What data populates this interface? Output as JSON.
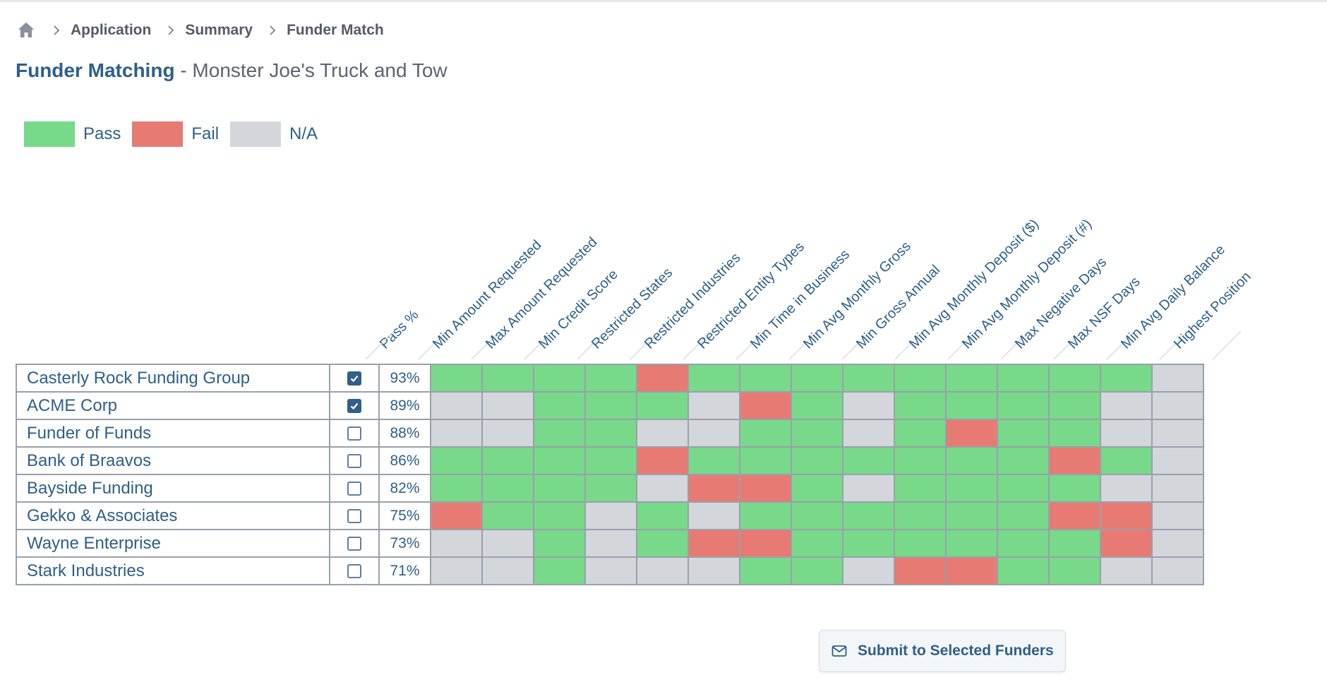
{
  "breadcrumb": {
    "home_icon": "home-icon",
    "items": [
      "Application",
      "Summary",
      "Funder Match"
    ]
  },
  "title": {
    "main": "Funder Matching",
    "rest": " - Monster Joe's Truck and Tow"
  },
  "legend": [
    {
      "label": "Pass",
      "color": "#77d989"
    },
    {
      "label": "Fail",
      "color": "#e87a74"
    },
    {
      "label": "N/A",
      "color": "#d3d6db"
    }
  ],
  "columns": [
    "Pass %",
    "Min Amount Requested",
    "Max Amount Requested",
    "Min Credit Score",
    "Restricted States",
    "Restricted Industries",
    "Restricted Entity Types",
    "Min Time in Business",
    "Min Avg Monthly Gross",
    "Min Gross Annual",
    "Min Avg Monthly Deposit ($)",
    "Min Avg Monthly Deposit (#)",
    "Max Negative Days",
    "Max NSF Days",
    "Min Avg Daily Balance",
    "Highest Position"
  ],
  "funders": [
    {
      "name": "Casterly Rock Funding Group",
      "selected": true,
      "pass_pct": "93%",
      "results": [
        "pass",
        "pass",
        "pass",
        "pass",
        "fail",
        "pass",
        "pass",
        "pass",
        "pass",
        "pass",
        "pass",
        "pass",
        "pass",
        "pass",
        "na"
      ]
    },
    {
      "name": "ACME Corp",
      "selected": true,
      "pass_pct": "89%",
      "results": [
        "na",
        "na",
        "pass",
        "pass",
        "pass",
        "na",
        "fail",
        "pass",
        "na",
        "pass",
        "pass",
        "pass",
        "pass",
        "na",
        "na"
      ]
    },
    {
      "name": "Funder of Funds",
      "selected": false,
      "pass_pct": "88%",
      "results": [
        "na",
        "na",
        "pass",
        "pass",
        "na",
        "na",
        "pass",
        "pass",
        "na",
        "pass",
        "fail",
        "pass",
        "pass",
        "na",
        "na"
      ]
    },
    {
      "name": "Bank of Braavos",
      "selected": false,
      "pass_pct": "86%",
      "results": [
        "pass",
        "pass",
        "pass",
        "pass",
        "fail",
        "pass",
        "pass",
        "pass",
        "pass",
        "pass",
        "pass",
        "pass",
        "fail",
        "pass",
        "na"
      ]
    },
    {
      "name": "Bayside Funding",
      "selected": false,
      "pass_pct": "82%",
      "results": [
        "pass",
        "pass",
        "pass",
        "pass",
        "na",
        "fail",
        "fail",
        "pass",
        "na",
        "pass",
        "pass",
        "pass",
        "pass",
        "na",
        "na"
      ]
    },
    {
      "name": "Gekko & Associates",
      "selected": false,
      "pass_pct": "75%",
      "results": [
        "fail",
        "pass",
        "pass",
        "na",
        "pass",
        "na",
        "pass",
        "pass",
        "pass",
        "pass",
        "pass",
        "pass",
        "fail",
        "fail",
        "na"
      ]
    },
    {
      "name": "Wayne Enterprise",
      "selected": false,
      "pass_pct": "73%",
      "results": [
        "na",
        "na",
        "pass",
        "na",
        "pass",
        "fail",
        "fail",
        "pass",
        "pass",
        "pass",
        "pass",
        "pass",
        "pass",
        "fail",
        "na"
      ]
    },
    {
      "name": "Stark Industries",
      "selected": false,
      "pass_pct": "71%",
      "results": [
        "na",
        "na",
        "pass",
        "na",
        "na",
        "na",
        "pass",
        "pass",
        "na",
        "fail",
        "fail",
        "pass",
        "pass",
        "na",
        "na"
      ]
    }
  ],
  "submit": {
    "label": "Submit to Selected Funders",
    "icon": "mail-icon"
  }
}
